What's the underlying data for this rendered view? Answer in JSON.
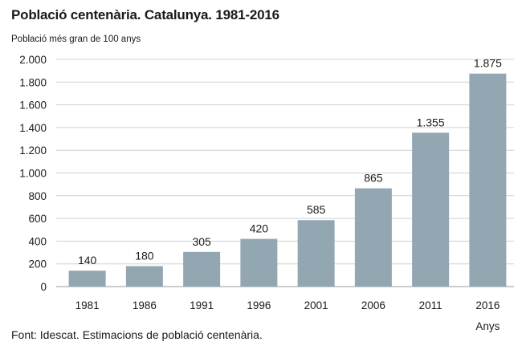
{
  "chart_data": {
    "type": "bar",
    "title": "Població centenària. Catalunya. 1981-2016",
    "ylabel": "Població més gran de 100 anys",
    "xlabel": "Anys",
    "categories": [
      "1981",
      "1986",
      "1991",
      "1996",
      "2001",
      "2006",
      "2011",
      "2016"
    ],
    "values": [
      140,
      180,
      305,
      420,
      585,
      865,
      1355,
      1875
    ],
    "value_labels": [
      "140",
      "180",
      "305",
      "420",
      "585",
      "865",
      "1.355",
      "1.875"
    ],
    "ylim": [
      0,
      2000
    ],
    "yticks": [
      0,
      200,
      400,
      600,
      800,
      1000,
      1200,
      1400,
      1600,
      1800,
      2000
    ],
    "ytick_labels": [
      "0",
      "200",
      "400",
      "600",
      "800",
      "1.000",
      "1.200",
      "1.400",
      "1.600",
      "1.800",
      "2.000"
    ],
    "grid": true,
    "legend": "none",
    "bar_color": "#93a7b3",
    "grid_color": "#d0d0d0",
    "source": "Font: Idescat. Estimacions de població centenària."
  }
}
